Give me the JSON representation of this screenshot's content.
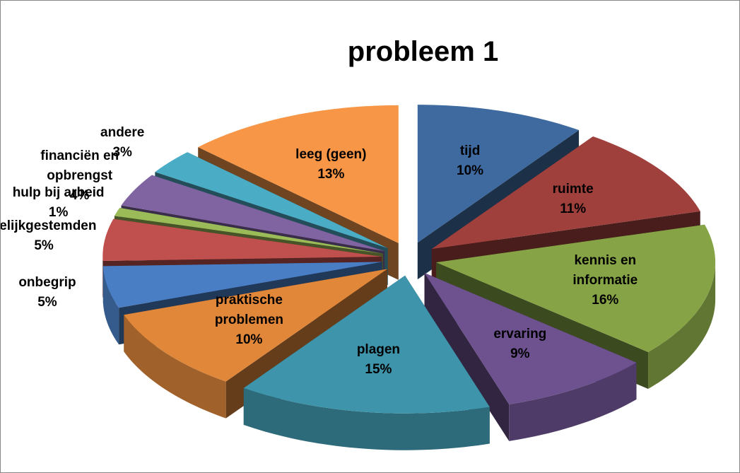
{
  "chart_data": {
    "type": "pie",
    "title": "probleem 1",
    "categories": [
      "tijd",
      "ruimte",
      "kennis en informatie",
      "ervaring",
      "plagen",
      "praktische problemen",
      "onbegrip",
      "gelijkgestemden",
      "hulp bij arbeid",
      "financiën en opbrengst",
      "andere",
      "leeg (geen)"
    ],
    "values": [
      10,
      11,
      16,
      9,
      15,
      10,
      5,
      5,
      1,
      4,
      3,
      13
    ],
    "value_labels": [
      "10%",
      "11%",
      "16%",
      "9%",
      "15%",
      "10%",
      "5%",
      "5%",
      "1%",
      "4%",
      "3%",
      "13%"
    ],
    "colors": [
      "#3e6aa0",
      "#a0403d",
      "#86a446",
      "#6e5290",
      "#3e94aa",
      "#e0873a",
      "#4a7ec4",
      "#c0504d",
      "#9bbb59",
      "#8064a2",
      "#4bacc6",
      "#f79646"
    ]
  }
}
